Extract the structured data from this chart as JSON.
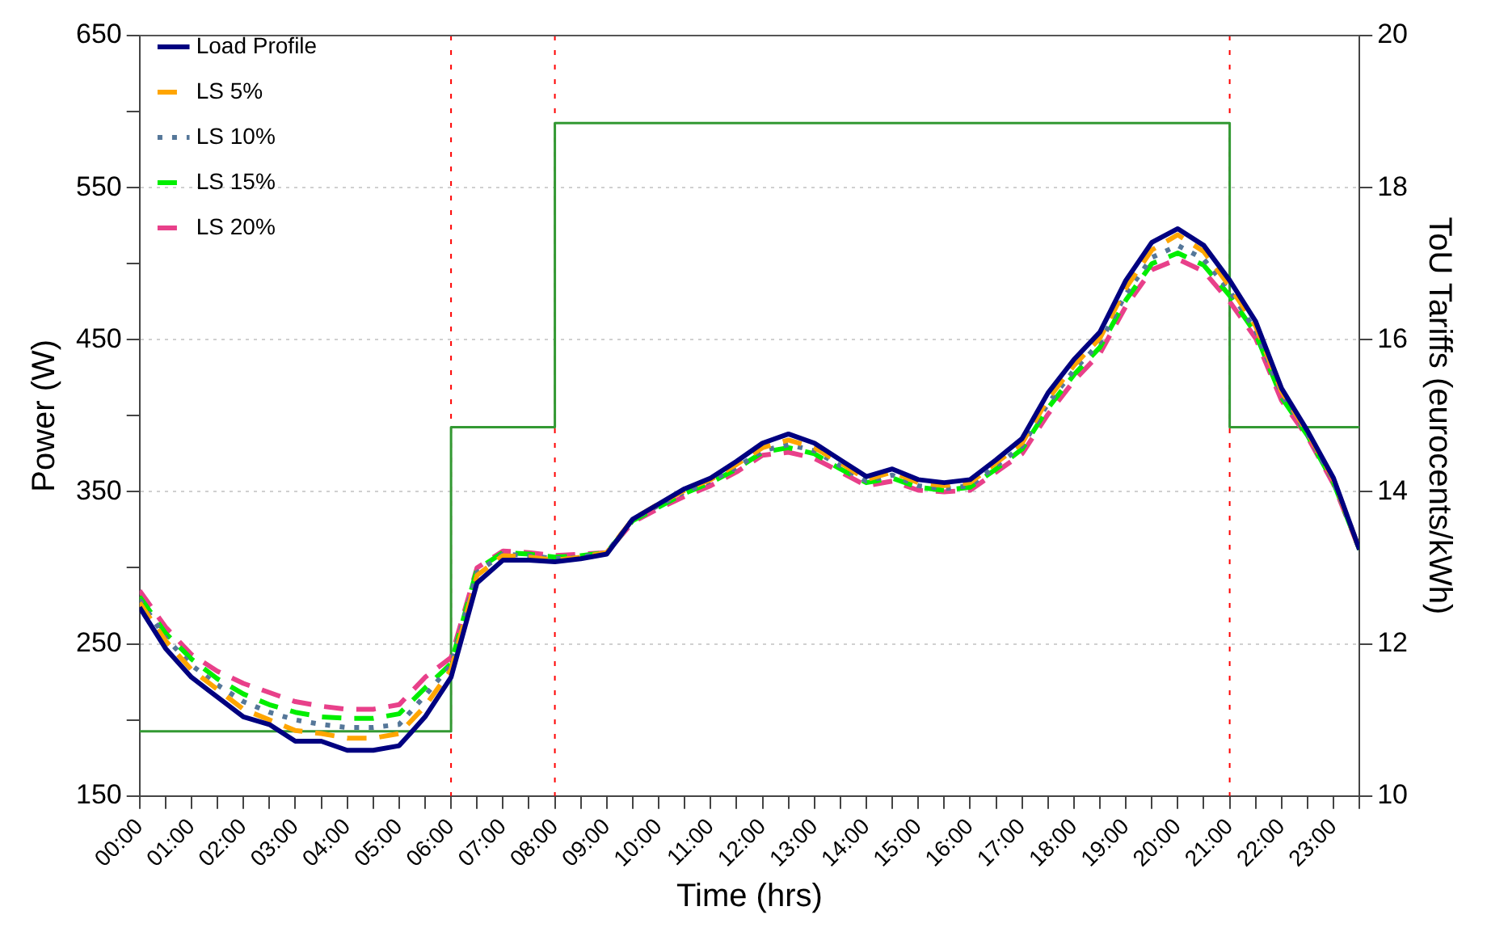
{
  "chart_data": {
    "type": "line",
    "xlabel": "Time (hrs)",
    "ylabel": "Power (W)",
    "y2label": "ToU Tariffs (eurocents/kWh)",
    "x": [
      0,
      0.5,
      1,
      1.5,
      2,
      2.5,
      3,
      3.5,
      4,
      4.5,
      5,
      5.5,
      6,
      6.5,
      7,
      7.5,
      8,
      8.5,
      9,
      9.5,
      10,
      10.5,
      11,
      11.5,
      12,
      12.5,
      13,
      13.5,
      14,
      14.5,
      15,
      15.5,
      16,
      16.5,
      17,
      17.5,
      18,
      18.5,
      19,
      19.5,
      20,
      20.5,
      21,
      21.5,
      22,
      22.5,
      23,
      23.5
    ],
    "series": [
      {
        "name": "Load Profile",
        "color": "#000080",
        "line_style": "solid",
        "values": [
          274,
          247,
          228,
          215,
          202,
          197,
          186,
          186,
          180,
          180,
          183,
          202,
          228,
          290,
          305,
          305,
          304,
          306,
          309,
          332,
          342,
          352,
          359,
          370,
          382,
          388,
          382,
          371,
          360,
          365,
          358,
          356,
          358,
          371,
          385,
          415,
          437,
          455,
          489,
          514,
          523,
          512,
          489,
          462,
          418,
          390,
          359,
          312
        ]
      },
      {
        "name": "LS 5%",
        "color": "#ffa500",
        "line_style": "dashed",
        "values": [
          277,
          252,
          233,
          220,
          207,
          200,
          193,
          191,
          188,
          188,
          191,
          209,
          233,
          295,
          308,
          307,
          305,
          307,
          310,
          332,
          342,
          351,
          358,
          368,
          379,
          384,
          379,
          369,
          358,
          363,
          356,
          354,
          356,
          369,
          382,
          411,
          433,
          451,
          484,
          509,
          519,
          508,
          485,
          459,
          416,
          389,
          358,
          312
        ]
      },
      {
        "name": "LS 10%",
        "color": "#557799",
        "line_style": "dotted",
        "values": [
          279,
          254,
          236,
          223,
          212,
          205,
          200,
          197,
          195,
          195,
          197,
          216,
          236,
          297,
          309,
          308,
          306,
          307,
          310,
          332,
          341,
          350,
          357,
          366,
          377,
          381,
          377,
          367,
          357,
          361,
          354,
          352,
          354,
          367,
          380,
          408,
          430,
          448,
          480,
          504,
          512,
          503,
          482,
          456,
          414,
          388,
          357,
          312
        ]
      },
      {
        "name": "LS 15%",
        "color": "#00ee00",
        "line_style": "dashed",
        "values": [
          281,
          257,
          240,
          227,
          217,
          210,
          205,
          202,
          201,
          201,
          204,
          221,
          237,
          299,
          310,
          309,
          307,
          308,
          310,
          331,
          340,
          349,
          356,
          365,
          376,
          379,
          375,
          365,
          356,
          359,
          353,
          351,
          353,
          365,
          378,
          405,
          427,
          445,
          476,
          500,
          507,
          499,
          479,
          454,
          412,
          387,
          356,
          312
        ]
      },
      {
        "name": "LS 20%",
        "color": "#e8408a",
        "line_style": "dashed",
        "values": [
          285,
          261,
          243,
          232,
          224,
          218,
          212,
          209,
          207,
          207,
          210,
          228,
          241,
          300,
          311,
          310,
          308,
          309,
          310,
          330,
          339,
          347,
          354,
          363,
          374,
          376,
          372,
          363,
          354,
          357,
          351,
          350,
          351,
          363,
          375,
          401,
          423,
          441,
          472,
          496,
          503,
          495,
          475,
          451,
          410,
          386,
          355,
          312
        ]
      },
      {
        "type": "step",
        "axis": "y2",
        "color": "#339933",
        "line_style": "solid",
        "x": [
          0,
          6,
          8,
          21,
          23.5
        ],
        "values": [
          10.85,
          14.85,
          18.85,
          14.85,
          14.85
        ]
      }
    ],
    "xlim": [
      0,
      23.5
    ],
    "xticks": [
      {
        "value": 0,
        "label": "00:00"
      },
      {
        "value": 0.5,
        "label": null
      },
      {
        "value": 1,
        "label": "01:00"
      },
      {
        "value": 1.5,
        "label": null
      },
      {
        "value": 2,
        "label": "02:00"
      },
      {
        "value": 2.5,
        "label": null
      },
      {
        "value": 3,
        "label": "03:00"
      },
      {
        "value": 3.5,
        "label": null
      },
      {
        "value": 4,
        "label": "04:00"
      },
      {
        "value": 4.5,
        "label": null
      },
      {
        "value": 5,
        "label": "05:00"
      },
      {
        "value": 5.5,
        "label": null
      },
      {
        "value": 6,
        "label": "06:00"
      },
      {
        "value": 6.5,
        "label": null
      },
      {
        "value": 7,
        "label": "07:00"
      },
      {
        "value": 7.5,
        "label": null
      },
      {
        "value": 8,
        "label": "08:00"
      },
      {
        "value": 8.5,
        "label": null
      },
      {
        "value": 9,
        "label": "09:00"
      },
      {
        "value": 9.5,
        "label": null
      },
      {
        "value": 10,
        "label": "10:00"
      },
      {
        "value": 10.5,
        "label": null
      },
      {
        "value": 11,
        "label": "11:00"
      },
      {
        "value": 11.5,
        "label": null
      },
      {
        "value": 12,
        "label": "12:00"
      },
      {
        "value": 12.5,
        "label": null
      },
      {
        "value": 13,
        "label": "13:00"
      },
      {
        "value": 13.5,
        "label": null
      },
      {
        "value": 14,
        "label": "14:00"
      },
      {
        "value": 14.5,
        "label": null
      },
      {
        "value": 15,
        "label": "15:00"
      },
      {
        "value": 15.5,
        "label": null
      },
      {
        "value": 16,
        "label": "16:00"
      },
      {
        "value": 16.5,
        "label": null
      },
      {
        "value": 17,
        "label": "17:00"
      },
      {
        "value": 17.5,
        "label": null
      },
      {
        "value": 18,
        "label": "18:00"
      },
      {
        "value": 18.5,
        "label": null
      },
      {
        "value": 19,
        "label": "19:00"
      },
      {
        "value": 19.5,
        "label": null
      },
      {
        "value": 20,
        "label": "20:00"
      },
      {
        "value": 20.5,
        "label": null
      },
      {
        "value": 21,
        "label": "21:00"
      },
      {
        "value": 21.5,
        "label": null
      },
      {
        "value": 22,
        "label": "22:00"
      },
      {
        "value": 22.5,
        "label": null
      },
      {
        "value": 23,
        "label": "23:00"
      },
      {
        "value": 23.5,
        "label": null
      }
    ],
    "ylim": [
      150,
      650
    ],
    "yticks": [
      150,
      {
        "value": 200,
        "label": null
      },
      250,
      {
        "value": 300,
        "label": null
      },
      350,
      {
        "value": 400,
        "label": null
      },
      450,
      {
        "value": 500,
        "label": null
      },
      550,
      {
        "value": 600,
        "label": null
      },
      650
    ],
    "y2lim": [
      10,
      20
    ],
    "y2ticks": [
      10,
      12,
      14,
      16,
      18,
      20
    ],
    "ref_lines": [
      {
        "axis": "x",
        "value": 6,
        "color": "#ff0000",
        "line_style": "dotted"
      },
      {
        "axis": "x",
        "value": 8,
        "color": "#ff0000",
        "line_style": "dotted"
      },
      {
        "axis": "x",
        "value": 21,
        "color": "#ff0000",
        "line_style": "dotted"
      }
    ],
    "grid": "y",
    "legend": "top left",
    "marker": "none"
  }
}
